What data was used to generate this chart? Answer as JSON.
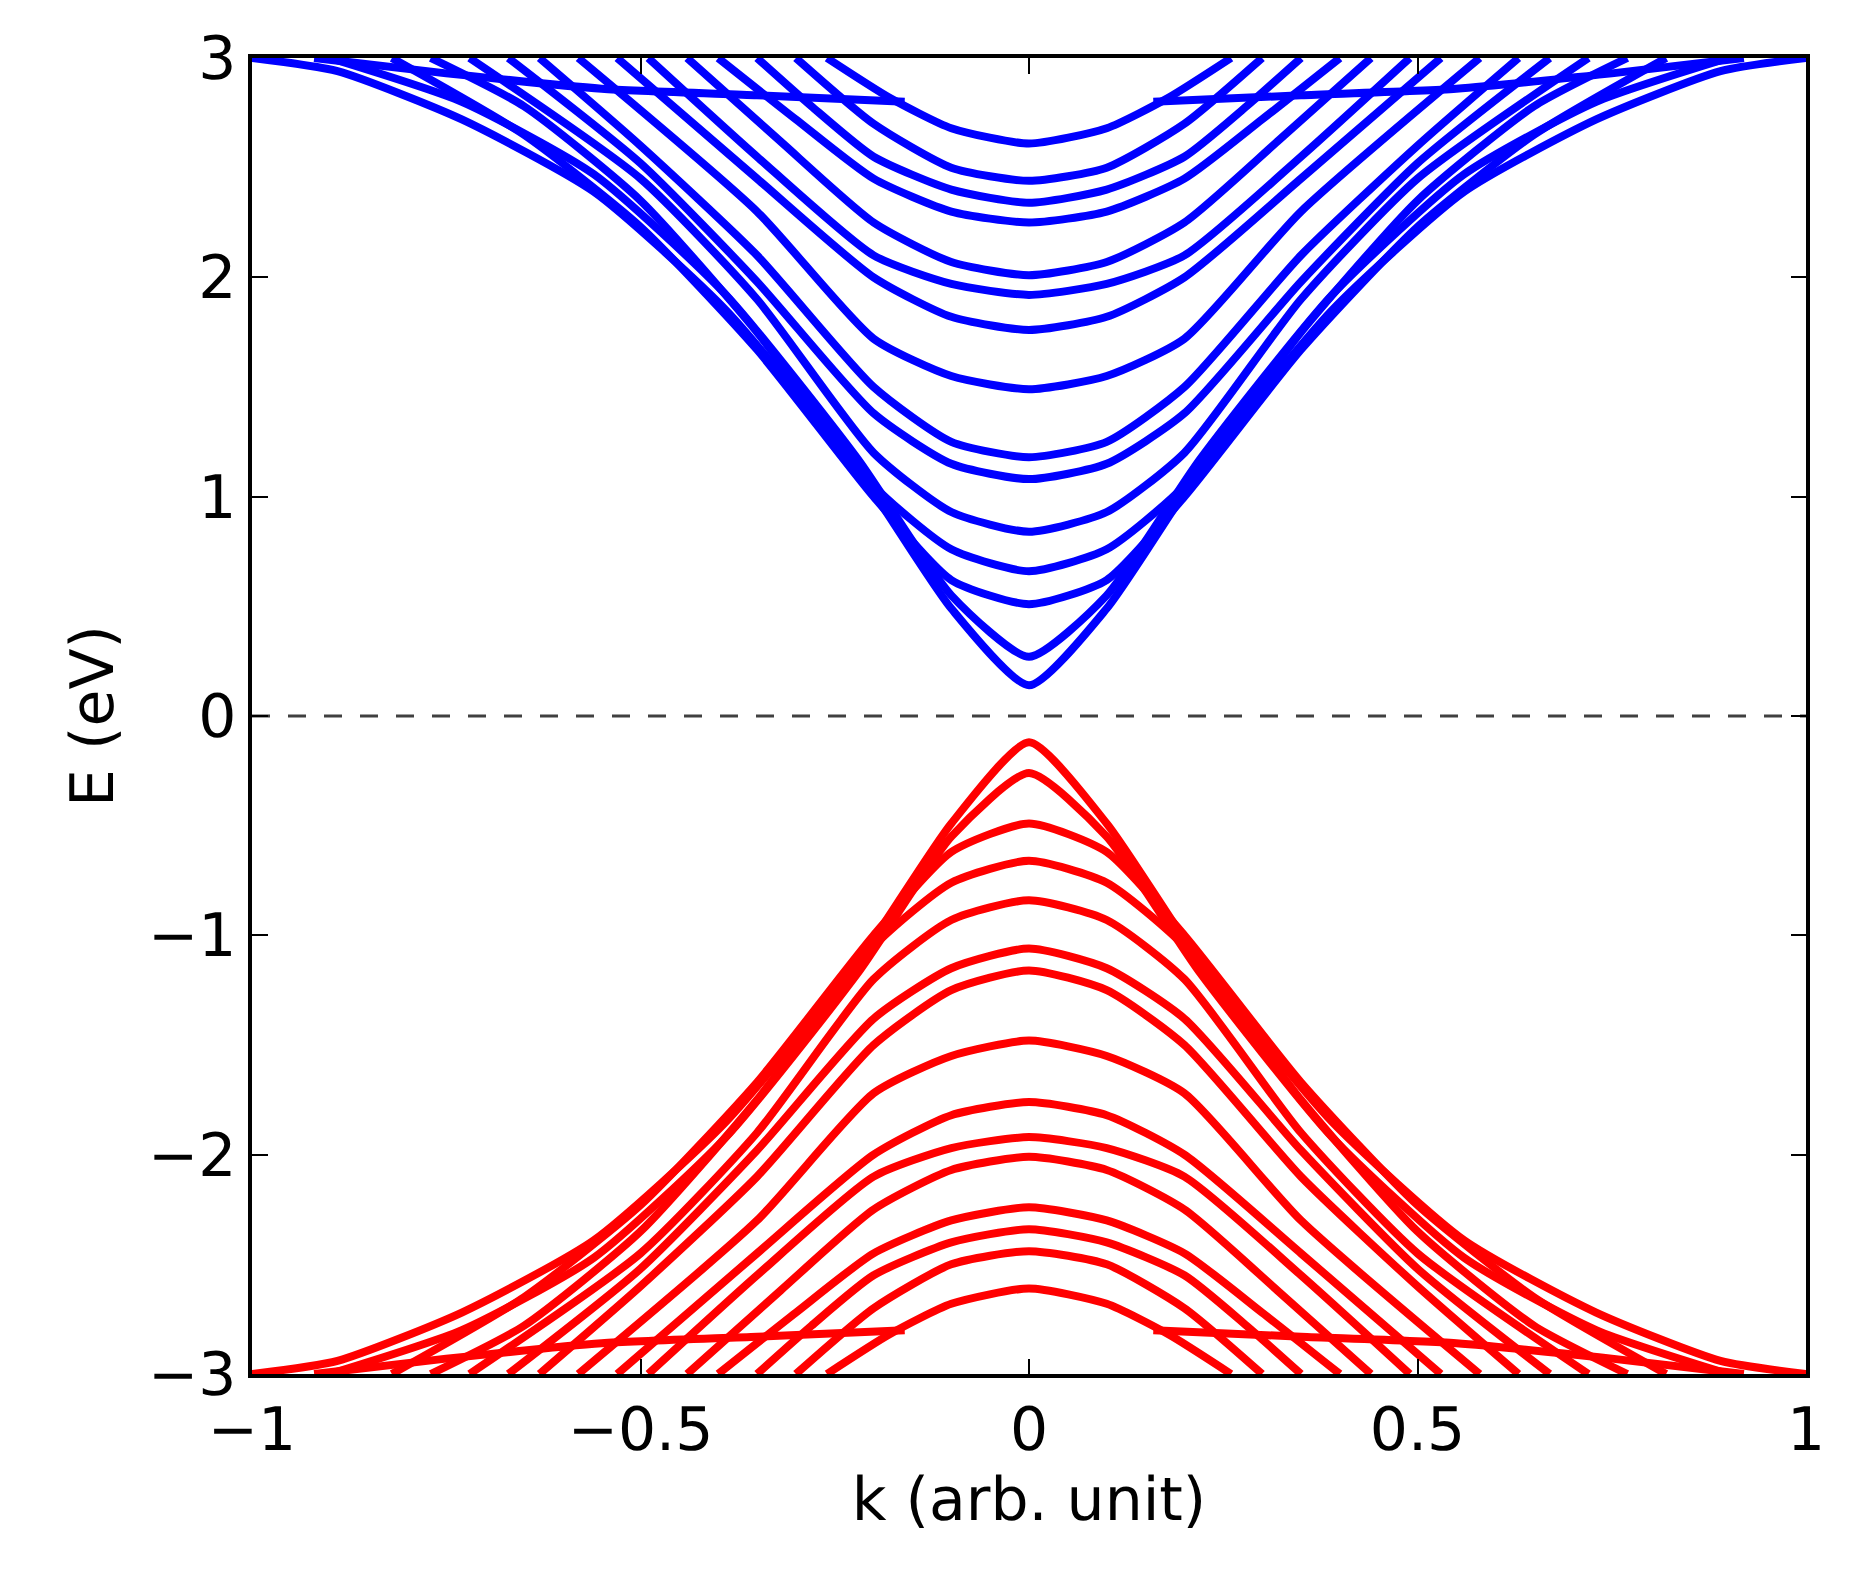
{
  "chart_data": {
    "type": "line",
    "xlabel": "k (arb. unit)",
    "ylabel": "E (eV)",
    "xlim": [
      -1,
      1
    ],
    "ylim": [
      -3,
      3
    ],
    "xticks": [
      {
        "value": -1,
        "label": "−1"
      },
      {
        "value": -0.5,
        "label": "−0.5"
      },
      0,
      0.5,
      1
    ],
    "yticks": [
      {
        "value": -3,
        "label": "−3"
      },
      {
        "value": -2,
        "label": "−2"
      },
      {
        "value": -1,
        "label": "−1"
      },
      0,
      1,
      2,
      3
    ],
    "grid": false,
    "marker": "none",
    "line_style": "solid",
    "ref_lines": [
      {
        "axis": "y",
        "value": 0,
        "label": null,
        "color": "#404040",
        "line_style": "dashed"
      }
    ],
    "series": [
      {
        "color": "#0000ff",
        "x": [
          -1,
          -0.89,
          -0.73,
          -0.56,
          -0.39,
          -0.22,
          -0.1,
          0,
          0.1,
          0.22,
          0.39,
          0.56,
          0.73,
          0.89,
          1
        ],
        "values": [
          3,
          2.94,
          2.72,
          2.39,
          1.85,
          1.12,
          0.49,
          0.14,
          0.49,
          1.12,
          1.85,
          2.39,
          2.72,
          2.94,
          3
        ]
      },
      {
        "color": "#0000ff",
        "x": [
          -0.9,
          -0.73,
          -0.56,
          -0.39,
          -0.22,
          -0.1,
          0,
          0.1,
          0.22,
          0.39,
          0.56,
          0.73,
          0.9
        ],
        "values": [
          3,
          2.8,
          2.47,
          1.92,
          1.17,
          0.55,
          0.27,
          0.55,
          1.17,
          1.92,
          2.47,
          2.8,
          3
        ]
      },
      {
        "color": "#0000ff",
        "x": [
          -0.82,
          -0.65,
          -0.5,
          -0.35,
          -0.2,
          -0.1,
          0,
          0.1,
          0.2,
          0.35,
          0.5,
          0.65,
          0.82
        ],
        "values": [
          3,
          2.65,
          2.23,
          1.67,
          1.0,
          0.62,
          0.51,
          0.62,
          1.0,
          1.67,
          2.23,
          2.65,
          3
        ]
      },
      {
        "color": "#0000ff",
        "x": [
          -0.77,
          -0.65,
          -0.5,
          -0.35,
          -0.2,
          -0.1,
          0,
          0.1,
          0.2,
          0.35,
          0.5,
          0.65,
          0.77
        ],
        "values": [
          3,
          2.78,
          2.35,
          1.75,
          1.05,
          0.76,
          0.66,
          0.76,
          1.05,
          1.75,
          2.35,
          2.78,
          3
        ]
      },
      {
        "color": "#0000ff",
        "x": [
          -0.72,
          -0.5,
          -0.35,
          -0.2,
          -0.1,
          0,
          0.1,
          0.2,
          0.35,
          0.5,
          0.72
        ],
        "values": [
          3,
          2.45,
          1.9,
          1.2,
          0.93,
          0.84,
          0.93,
          1.2,
          1.9,
          2.45,
          3
        ]
      },
      {
        "color": "#0000ff",
        "x": [
          -0.67,
          -0.5,
          -0.35,
          -0.2,
          -0.1,
          0,
          0.1,
          0.2,
          0.35,
          0.5,
          0.67
        ],
        "values": [
          3,
          2.52,
          1.98,
          1.38,
          1.15,
          1.08,
          1.15,
          1.38,
          1.98,
          2.52,
          3
        ]
      },
      {
        "color": "#0000ff",
        "x": [
          -0.63,
          -0.5,
          -0.35,
          -0.2,
          -0.1,
          0,
          0.1,
          0.2,
          0.35,
          0.5,
          0.63
        ],
        "values": [
          3,
          2.6,
          2.1,
          1.5,
          1.25,
          1.18,
          1.25,
          1.5,
          2.1,
          2.6,
          3
        ]
      },
      {
        "color": "#0000ff",
        "x": [
          -0.58,
          -0.35,
          -0.2,
          -0.1,
          0,
          0.1,
          0.2,
          0.35,
          0.58
        ],
        "values": [
          3,
          2.3,
          1.72,
          1.55,
          1.49,
          1.55,
          1.72,
          2.3,
          3
        ]
      },
      {
        "color": "#0000ff",
        "x": [
          -0.53,
          -0.35,
          -0.2,
          -0.1,
          0,
          0.1,
          0.2,
          0.35,
          0.53
        ],
        "values": [
          3,
          2.45,
          2.0,
          1.82,
          1.76,
          1.82,
          2.0,
          2.45,
          3
        ]
      },
      {
        "color": "#0000ff",
        "x": [
          -0.49,
          -0.35,
          -0.2,
          -0.1,
          0,
          0.1,
          0.2,
          0.35,
          0.49
        ],
        "values": [
          3,
          2.55,
          2.1,
          1.97,
          1.92,
          1.97,
          2.1,
          2.55,
          3
        ]
      },
      {
        "color": "#0000ff",
        "x": [
          -0.44,
          -0.32,
          -0.2,
          -0.1,
          0,
          0.1,
          0.2,
          0.32,
          0.44
        ],
        "values": [
          3,
          2.62,
          2.25,
          2.07,
          2.01,
          2.07,
          2.25,
          2.62,
          3
        ]
      },
      {
        "color": "#0000ff",
        "x": [
          -0.4,
          -0.3,
          -0.2,
          -0.1,
          0,
          0.1,
          0.2,
          0.3,
          0.4
        ],
        "values": [
          3,
          2.72,
          2.45,
          2.3,
          2.25,
          2.3,
          2.45,
          2.72,
          3
        ]
      },
      {
        "color": "#0000ff",
        "x": [
          -0.35,
          -0.28,
          -0.2,
          -0.1,
          0,
          0.1,
          0.2,
          0.28,
          0.35
        ],
        "values": [
          3,
          2.78,
          2.55,
          2.4,
          2.34,
          2.4,
          2.55,
          2.78,
          3
        ]
      },
      {
        "color": "#0000ff",
        "x": [
          -0.3,
          -0.2,
          -0.1,
          0,
          0.1,
          0.2,
          0.3
        ],
        "values": [
          3,
          2.7,
          2.5,
          2.44,
          2.5,
          2.7,
          3
        ]
      },
      {
        "color": "#0000ff",
        "x": [
          -0.26,
          -0.18,
          -0.1,
          0,
          0.1,
          0.18,
          0.26
        ],
        "values": [
          3,
          2.82,
          2.68,
          2.61,
          2.68,
          2.82,
          3
        ]
      },
      {
        "color": "#0000ff",
        "x": [
          -0.92,
          -0.75,
          -0.55,
          -0.35,
          -0.16,
          0,
          0.16,
          0.35,
          0.55,
          0.75,
          0.92
        ],
        "values": [
          3,
          2.93,
          2.86,
          2.83,
          2.8,
          null,
          2.8,
          2.83,
          2.86,
          2.93,
          3
        ]
      },
      {
        "color": "#ff0000",
        "x": [
          -1,
          -0.89,
          -0.73,
          -0.56,
          -0.39,
          -0.22,
          -0.1,
          0,
          0.1,
          0.22,
          0.39,
          0.56,
          0.73,
          0.89,
          1
        ],
        "values": [
          -3,
          -2.94,
          -2.72,
          -2.39,
          -1.85,
          -1.12,
          -0.49,
          -0.12,
          -0.49,
          -1.12,
          -1.85,
          -2.39,
          -2.72,
          -2.94,
          -3
        ]
      },
      {
        "color": "#ff0000",
        "x": [
          -0.9,
          -0.73,
          -0.56,
          -0.39,
          -0.22,
          -0.1,
          0,
          0.1,
          0.22,
          0.39,
          0.56,
          0.73,
          0.9
        ],
        "values": [
          -3,
          -2.8,
          -2.47,
          -1.92,
          -1.17,
          -0.55,
          -0.26,
          -0.55,
          -1.17,
          -1.92,
          -2.47,
          -2.8,
          -3
        ]
      },
      {
        "color": "#ff0000",
        "x": [
          -0.82,
          -0.65,
          -0.5,
          -0.35,
          -0.2,
          -0.1,
          0,
          0.1,
          0.2,
          0.35,
          0.5,
          0.65,
          0.82
        ],
        "values": [
          -3,
          -2.65,
          -2.23,
          -1.67,
          -1.0,
          -0.62,
          -0.49,
          -0.62,
          -1.0,
          -1.67,
          -2.23,
          -2.65,
          -3
        ]
      },
      {
        "color": "#ff0000",
        "x": [
          -0.77,
          -0.65,
          -0.5,
          -0.35,
          -0.2,
          -0.1,
          0,
          0.1,
          0.2,
          0.35,
          0.5,
          0.65,
          0.77
        ],
        "values": [
          -3,
          -2.78,
          -2.35,
          -1.75,
          -1.05,
          -0.76,
          -0.66,
          -0.76,
          -1.05,
          -1.75,
          -2.35,
          -2.78,
          -3
        ]
      },
      {
        "color": "#ff0000",
        "x": [
          -0.72,
          -0.5,
          -0.35,
          -0.2,
          -0.1,
          0,
          0.1,
          0.2,
          0.35,
          0.5,
          0.72
        ],
        "values": [
          -3,
          -2.45,
          -1.9,
          -1.2,
          -0.93,
          -0.84,
          -0.93,
          -1.2,
          -1.9,
          -2.45,
          -3
        ]
      },
      {
        "color": "#ff0000",
        "x": [
          -0.67,
          -0.5,
          -0.35,
          -0.2,
          -0.1,
          0,
          0.1,
          0.2,
          0.35,
          0.5,
          0.67
        ],
        "values": [
          -3,
          -2.52,
          -1.98,
          -1.38,
          -1.15,
          -1.06,
          -1.15,
          -1.38,
          -1.98,
          -2.52,
          -3
        ]
      },
      {
        "color": "#ff0000",
        "x": [
          -0.63,
          -0.5,
          -0.35,
          -0.2,
          -0.1,
          0,
          0.1,
          0.2,
          0.35,
          0.5,
          0.63
        ],
        "values": [
          -3,
          -2.6,
          -2.1,
          -1.5,
          -1.25,
          -1.16,
          -1.25,
          -1.5,
          -2.1,
          -2.6,
          -3
        ]
      },
      {
        "color": "#ff0000",
        "x": [
          -0.58,
          -0.35,
          -0.2,
          -0.1,
          0,
          0.1,
          0.2,
          0.35,
          0.58
        ],
        "values": [
          -3,
          -2.3,
          -1.72,
          -1.55,
          -1.48,
          -1.55,
          -1.72,
          -2.3,
          -3
        ]
      },
      {
        "color": "#ff0000",
        "x": [
          -0.53,
          -0.35,
          -0.2,
          -0.1,
          0,
          0.1,
          0.2,
          0.35,
          0.53
        ],
        "values": [
          -3,
          -2.45,
          -2.0,
          -1.82,
          -1.76,
          -1.82,
          -2.0,
          -2.45,
          -3
        ]
      },
      {
        "color": "#ff0000",
        "x": [
          -0.49,
          -0.35,
          -0.2,
          -0.1,
          0,
          0.1,
          0.2,
          0.35,
          0.49
        ],
        "values": [
          -3,
          -2.55,
          -2.1,
          -1.97,
          -1.92,
          -1.97,
          -2.1,
          -2.55,
          -3
        ]
      },
      {
        "color": "#ff0000",
        "x": [
          -0.44,
          -0.32,
          -0.2,
          -0.1,
          0,
          0.1,
          0.2,
          0.32,
          0.44
        ],
        "values": [
          -3,
          -2.62,
          -2.25,
          -2.07,
          -2.01,
          -2.07,
          -2.25,
          -2.62,
          -3
        ]
      },
      {
        "color": "#ff0000",
        "x": [
          -0.4,
          -0.3,
          -0.2,
          -0.1,
          0,
          0.1,
          0.2,
          0.3,
          0.4
        ],
        "values": [
          -3,
          -2.72,
          -2.45,
          -2.3,
          -2.24,
          -2.3,
          -2.45,
          -2.72,
          -3
        ]
      },
      {
        "color": "#ff0000",
        "x": [
          -0.35,
          -0.28,
          -0.2,
          -0.1,
          0,
          0.1,
          0.2,
          0.28,
          0.35
        ],
        "values": [
          -3,
          -2.78,
          -2.55,
          -2.4,
          -2.34,
          -2.4,
          -2.55,
          -2.78,
          -3
        ]
      },
      {
        "color": "#ff0000",
        "x": [
          -0.3,
          -0.2,
          -0.1,
          0,
          0.1,
          0.2,
          0.3
        ],
        "values": [
          -3,
          -2.7,
          -2.5,
          -2.44,
          -2.5,
          -2.7,
          -3
        ]
      },
      {
        "color": "#ff0000",
        "x": [
          -0.26,
          -0.18,
          -0.1,
          0,
          0.1,
          0.18,
          0.26
        ],
        "values": [
          -3,
          -2.82,
          -2.68,
          -2.61,
          -2.68,
          -2.82,
          -3
        ]
      },
      {
        "color": "#ff0000",
        "x": [
          -0.92,
          -0.75,
          -0.55,
          -0.35,
          -0.16,
          0,
          0.16,
          0.35,
          0.55,
          0.75,
          0.92
        ],
        "values": [
          -3,
          -2.93,
          -2.86,
          -2.83,
          -2.8,
          null,
          -2.8,
          -2.83,
          -2.86,
          -2.93,
          -3
        ]
      }
    ]
  }
}
